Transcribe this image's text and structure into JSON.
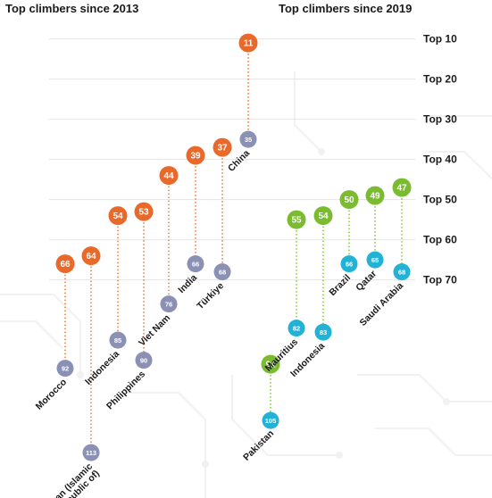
{
  "colors": {
    "top_2013": "#e8692a",
    "top_2019": "#7bbb2f",
    "bottom_2013": "#8b91b5",
    "bottom_2019": "#22b2d6"
  },
  "chart_data": [
    {
      "type": "dumbbell",
      "title": "Top climbers since 2013",
      "rank_ticks": [
        "Top 10",
        "Top 20",
        "Top 30",
        "Top 40",
        "Top 50",
        "Top 60",
        "Top 70"
      ],
      "y_axis": "rank (inverted)",
      "points": [
        {
          "country": "Morocco",
          "from": 92,
          "to": 66
        },
        {
          "country": "Iran (Islamic Republic of)",
          "from": 113,
          "to": 64
        },
        {
          "country": "Indonesia",
          "from": 85,
          "to": 54
        },
        {
          "country": "Philippines",
          "from": 90,
          "to": 53
        },
        {
          "country": "Viet Nam",
          "from": 76,
          "to": 44
        },
        {
          "country": "India",
          "from": 66,
          "to": 39
        },
        {
          "country": "Türkiye",
          "from": 68,
          "to": 37
        },
        {
          "country": "China",
          "from": 35,
          "to": 11
        }
      ]
    },
    {
      "type": "dumbbell",
      "title": "Top climbers since 2019",
      "rank_ticks": [
        "Top 10",
        "Top 20",
        "Top 30",
        "Top 40",
        "Top 50",
        "Top 60",
        "Top 70"
      ],
      "y_axis": "rank (inverted)",
      "points": [
        {
          "country": "Pakistan",
          "from": 105,
          "to": 91
        },
        {
          "country": "Mauritius",
          "from": 82,
          "to": 55
        },
        {
          "country": "Indonesia",
          "from": 83,
          "to": 54
        },
        {
          "country": "Brazil",
          "from": 66,
          "to": 50
        },
        {
          "country": "Qatar",
          "from": 65,
          "to": 49
        },
        {
          "country": "Saudi Arabia",
          "from": 68,
          "to": 47
        }
      ]
    }
  ]
}
